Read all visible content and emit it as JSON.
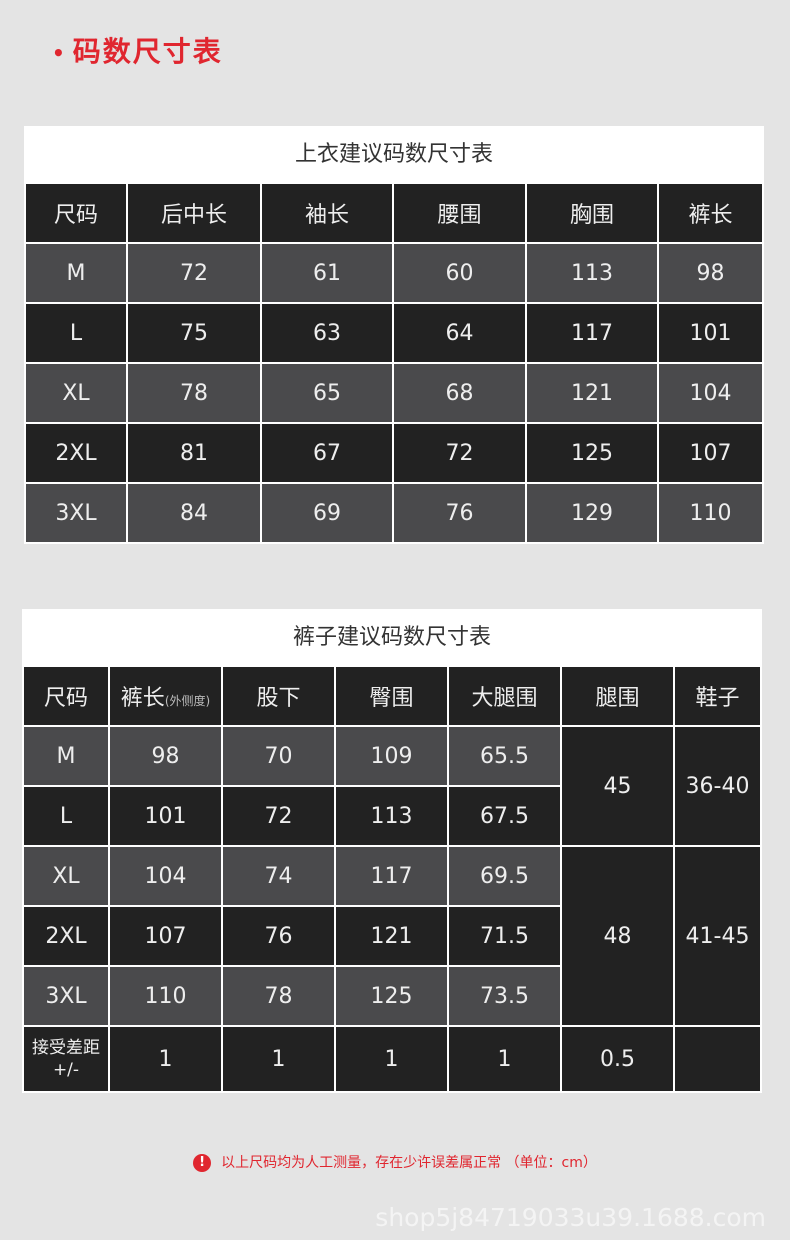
{
  "heading": "码数尺寸表",
  "top_table": {
    "title": "上衣建议码数尺寸表",
    "headers": [
      "尺码",
      "后中长",
      "袖长",
      "腰围",
      "胸围",
      "裤长"
    ],
    "rows": [
      [
        "M",
        "72",
        "61",
        "60",
        "113",
        "98"
      ],
      [
        "L",
        "75",
        "63",
        "64",
        "117",
        "101"
      ],
      [
        "XL",
        "78",
        "65",
        "68",
        "121",
        "104"
      ],
      [
        "2XL",
        "81",
        "67",
        "72",
        "125",
        "107"
      ],
      [
        "3XL",
        "84",
        "69",
        "76",
        "129",
        "110"
      ]
    ]
  },
  "pants_table": {
    "title": "裤子建议码数尺寸表",
    "headers": [
      "尺码",
      "裤长",
      "股下",
      "臀围",
      "大腿围",
      "腿围",
      "鞋子"
    ],
    "header_note": "(外侧度)",
    "rows": [
      [
        "M",
        "98",
        "70",
        "109",
        "65.5"
      ],
      [
        "L",
        "101",
        "72",
        "113",
        "67.5"
      ],
      [
        "XL",
        "104",
        "74",
        "117",
        "69.5"
      ],
      [
        "2XL",
        "107",
        "76",
        "121",
        "71.5"
      ],
      [
        "3XL",
        "110",
        "78",
        "125",
        "73.5"
      ]
    ],
    "leg": [
      "45",
      "48"
    ],
    "shoes": [
      "36-40",
      "41-45"
    ],
    "tolerance": {
      "label": "接受差距",
      "sub": "+/-",
      "values": [
        "1",
        "1",
        "1",
        "1",
        "0.5",
        ""
      ]
    }
  },
  "note": "以上尺码均为人工测量，存在少许误差属正常 （单位：cm）",
  "watermark": "shop5j84719033u39.1688.com",
  "colors": {
    "accent": "#e0262f",
    "dark_cell": "#222222",
    "gray_cell": "#4a4a4c"
  }
}
